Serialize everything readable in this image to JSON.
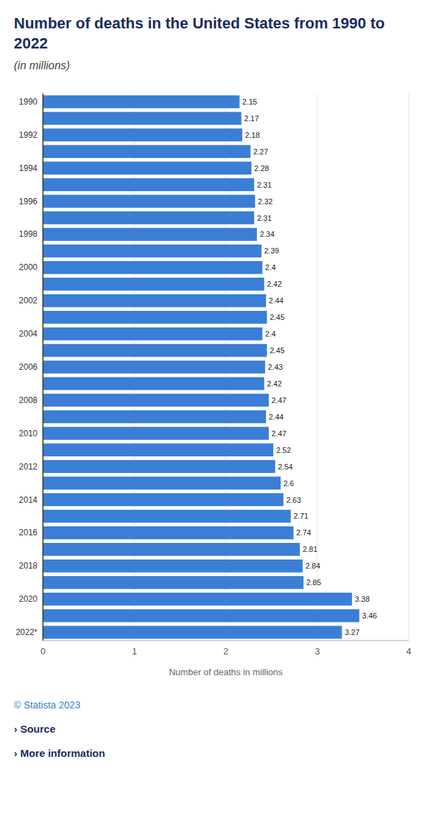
{
  "chart_data": {
    "type": "bar",
    "orientation": "horizontal",
    "title": "Number of deaths in the United States from 1990 to 2022",
    "subtitle": "(in millions)",
    "x_label": "Number of deaths in millions",
    "categories": [
      "1990",
      null,
      "1992",
      null,
      "1994",
      null,
      "1996",
      null,
      "1998",
      null,
      "2000",
      null,
      "2002",
      null,
      "2004",
      null,
      "2006",
      null,
      "2008",
      null,
      "2010",
      null,
      "2012",
      null,
      "2014",
      null,
      "2016",
      null,
      "2018",
      null,
      "2020",
      null,
      "2022*"
    ],
    "values": [
      2.15,
      2.17,
      2.18,
      2.27,
      2.28,
      2.31,
      2.32,
      2.31,
      2.34,
      2.39,
      2.4,
      2.42,
      2.44,
      2.45,
      2.4,
      2.45,
      2.43,
      2.42,
      2.47,
      2.44,
      2.47,
      2.52,
      2.54,
      2.6,
      2.63,
      2.71,
      2.74,
      2.81,
      2.84,
      2.85,
      3.38,
      3.46,
      3.27
    ],
    "color": "#3a7fd5",
    "xlim": [
      0,
      4
    ],
    "xticks": [
      0,
      1,
      2,
      3,
      4
    ],
    "grid": true,
    "data_labels": true,
    "annotations": [
      "© Statista 2023",
      "› Source",
      "› More information"
    ]
  }
}
